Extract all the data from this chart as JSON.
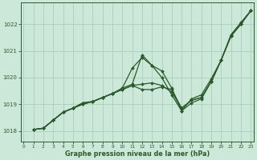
{
  "xlabel": "Graphe pression niveau de la mer (hPa)",
  "ylim": [
    1017.6,
    1022.8
  ],
  "xlim": [
    -0.3,
    23.3
  ],
  "yticks": [
    1018,
    1019,
    1020,
    1021,
    1022
  ],
  "xticks": [
    0,
    1,
    2,
    3,
    4,
    5,
    6,
    7,
    8,
    9,
    10,
    11,
    12,
    13,
    14,
    15,
    16,
    17,
    18,
    19,
    20,
    21,
    22,
    23
  ],
  "bg_color": "#cce8d8",
  "grid_color": "#aacfbe",
  "line_color": "#2d5a2d",
  "line_width": 0.9,
  "marker": "D",
  "marker_size": 2.0,
  "series": [
    [
      1018.05,
      1018.1,
      1018.4,
      1018.7,
      1018.85,
      1019.05,
      1019.1,
      1019.25,
      1019.4,
      1019.6,
      1020.35,
      1020.75,
      1020.45,
      1020.0,
      1019.35,
      1018.75,
      1019.2,
      1019.35,
      1019.95,
      1020.65,
      1021.6,
      1022.05,
      1022.5
    ],
    [
      1018.05,
      1018.1,
      1018.4,
      1018.7,
      1018.85,
      1019.05,
      1019.1,
      1019.25,
      1019.4,
      1019.6,
      1019.75,
      1020.85,
      1020.45,
      1020.25,
      1019.6,
      1018.75,
      1019.05,
      1019.2,
      1019.85,
      1020.65,
      1021.6,
      1022.05,
      1022.5
    ],
    [
      1018.05,
      1018.1,
      1018.4,
      1018.7,
      1018.85,
      1019.0,
      1019.1,
      1019.25,
      1019.4,
      1019.55,
      1019.7,
      1019.55,
      1019.55,
      1019.65,
      1019.55,
      1018.85,
      1019.15,
      1019.25,
      1019.85,
      1020.65,
      1021.55,
      1022.0,
      1022.5
    ],
    [
      1018.05,
      1018.1,
      1018.4,
      1018.7,
      1018.85,
      1019.0,
      1019.1,
      1019.25,
      1019.4,
      1019.55,
      1019.7,
      1019.75,
      1019.8,
      1019.7,
      1019.45,
      1018.85,
      1019.15,
      1019.25,
      1019.85,
      1020.65,
      1021.55,
      1022.0,
      1022.5
    ]
  ],
  "x_start": 1
}
